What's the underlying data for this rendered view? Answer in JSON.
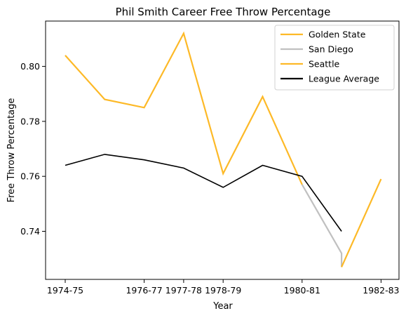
{
  "chart_data": {
    "type": "line",
    "title": "Phil Smith  Career Free Throw Percentage",
    "xlabel": "Year",
    "ylabel": "Free Throw Percentage",
    "x_ticks": [
      "1974-75",
      "1976-77",
      "1977-78",
      "1978-79",
      "1980-81",
      "1982-83"
    ],
    "y_ticks": [
      0.74,
      0.76,
      0.78,
      0.8
    ],
    "ylim": [
      0.7225,
      0.8165
    ],
    "grid": false,
    "legend_position": "top-right",
    "series": [
      {
        "name": "Golden State",
        "color": "#FDB927",
        "points": [
          {
            "season": "1974-75",
            "value": 0.804
          },
          {
            "season": "1975-76",
            "value": 0.788
          },
          {
            "season": "1976-77",
            "value": 0.785
          },
          {
            "season": "1977-78",
            "value": 0.812
          },
          {
            "season": "1978-79",
            "value": 0.761
          },
          {
            "season": "1979-80",
            "value": 0.789
          },
          {
            "season": "1980-81",
            "value": 0.757
          }
        ]
      },
      {
        "name": "San Diego",
        "color": "#C0C0C0",
        "points": [
          {
            "season": "1980-81",
            "value": 0.757
          },
          {
            "season": "1981-82",
            "value": 0.732
          },
          {
            "season": "1981-82",
            "value": 0.727
          }
        ]
      },
      {
        "name": "Seattle",
        "color": "#FDB927",
        "points": [
          {
            "season": "1981-82",
            "value": 0.727
          },
          {
            "season": "1982-83",
            "value": 0.759
          }
        ]
      },
      {
        "name": "League Average",
        "color": "#000000",
        "points": [
          {
            "season": "1974-75",
            "value": 0.764
          },
          {
            "season": "1975-76",
            "value": 0.768
          },
          {
            "season": "1976-77",
            "value": 0.766
          },
          {
            "season": "1977-78",
            "value": 0.763
          },
          {
            "season": "1978-79",
            "value": 0.756
          },
          {
            "season": "1979-80",
            "value": 0.764
          },
          {
            "season": "1980-81",
            "value": 0.76
          },
          {
            "season": "1981-82",
            "value": 0.74
          }
        ]
      }
    ]
  }
}
